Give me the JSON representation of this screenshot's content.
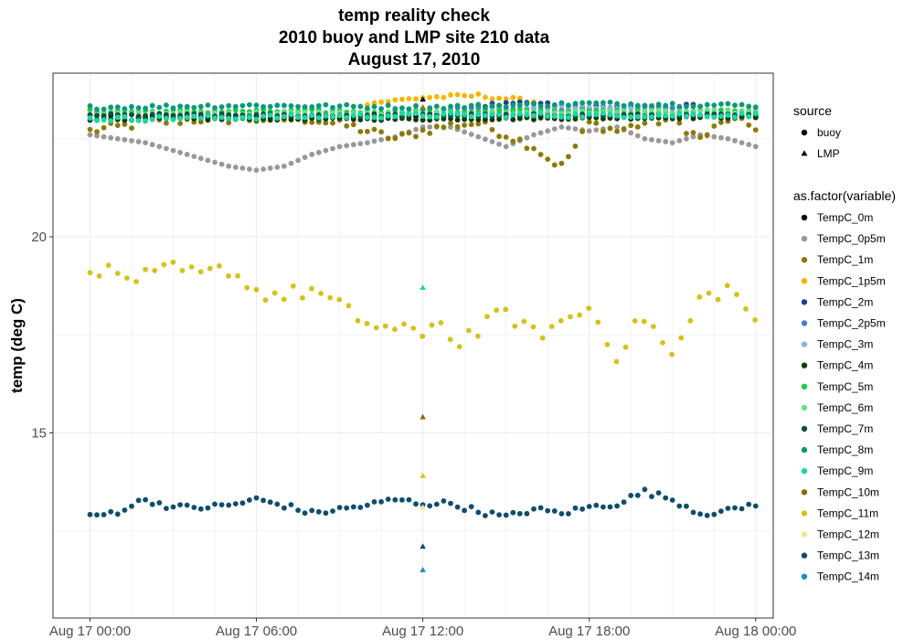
{
  "chart_data": {
    "type": "scatter",
    "title": [
      "temp reality check",
      "2010 buoy and LMP site 210 data",
      "August 17, 2010"
    ],
    "xlabel": "",
    "ylabel": "temp (deg C)",
    "x_range_hours": [
      -1.3,
      24.6
    ],
    "ylim": [
      10.3,
      24.15
    ],
    "x_ticks": [
      {
        "value": 0,
        "label": "Aug 17 00:00"
      },
      {
        "value": 6,
        "label": "Aug 17 06:00"
      },
      {
        "value": 12,
        "label": "Aug 17 12:00"
      },
      {
        "value": 18,
        "label": "Aug 17 18:00"
      },
      {
        "value": 24,
        "label": "Aug 18 00:00"
      }
    ],
    "y_ticks": [
      {
        "value": 15,
        "label": "15"
      },
      {
        "value": 20,
        "label": "20"
      }
    ],
    "grid": true,
    "legend_position": "right",
    "source_legend": {
      "title": "source",
      "entries": [
        {
          "label": "buoy",
          "shape": "circle"
        },
        {
          "label": "LMP",
          "shape": "triangle"
        }
      ]
    },
    "variable_legend": {
      "title": "as.factor(variable)",
      "entries": [
        {
          "label": "TempC_0m",
          "color": "#000000"
        },
        {
          "label": "TempC_0p5m",
          "color": "#999999"
        },
        {
          "label": "TempC_1m",
          "color": "#8c7a00"
        },
        {
          "label": "TempC_1p5m",
          "color": "#f2b600"
        },
        {
          "label": "TempC_2m",
          "color": "#1f3d99"
        },
        {
          "label": "TempC_2p5m",
          "color": "#4d7fbf"
        },
        {
          "label": "TempC_3m",
          "color": "#8fb0e6"
        },
        {
          "label": "TempC_4m",
          "color": "#0b3d0b"
        },
        {
          "label": "TempC_5m",
          "color": "#1ec84a"
        },
        {
          "label": "TempC_6m",
          "color": "#66e08a"
        },
        {
          "label": "TempC_7m",
          "color": "#0b5236"
        },
        {
          "label": "TempC_8m",
          "color": "#0a9a78"
        },
        {
          "label": "TempC_9m",
          "color": "#19d9a3"
        },
        {
          "label": "TempC_10m",
          "color": "#8a6d00"
        },
        {
          "label": "TempC_11m",
          "color": "#d4c21a"
        },
        {
          "label": "TempC_12m",
          "color": "#f2e68c"
        },
        {
          "label": "TempC_13m",
          "color": "#0e4d6e"
        },
        {
          "label": "TempC_14m",
          "color": "#1a8fc4"
        }
      ]
    },
    "series": [
      {
        "name": "TempC_0p5m",
        "source": "buoy",
        "color": "#999999",
        "mode": "smooth",
        "knots": [
          [
            0,
            22.6
          ],
          [
            1,
            22.5
          ],
          [
            2,
            22.4
          ],
          [
            3,
            22.2
          ],
          [
            4,
            22.0
          ],
          [
            5,
            21.8
          ],
          [
            6,
            21.7
          ],
          [
            7,
            21.8
          ],
          [
            8,
            22.1
          ],
          [
            9,
            22.3
          ],
          [
            10,
            22.4
          ],
          [
            11,
            22.55
          ],
          [
            12,
            22.8
          ],
          [
            13,
            22.8
          ],
          [
            14,
            22.55
          ],
          [
            15,
            22.3
          ],
          [
            16,
            22.6
          ],
          [
            17,
            22.8
          ],
          [
            18,
            22.7
          ],
          [
            19,
            22.8
          ],
          [
            20,
            22.5
          ],
          [
            21,
            22.4
          ],
          [
            22,
            22.6
          ],
          [
            23,
            22.5
          ],
          [
            24,
            22.3
          ]
        ]
      },
      {
        "name": "TempC_1m",
        "source": "buoy",
        "color": "#8c7a00",
        "mode": "jitter",
        "knots": [
          [
            0,
            22.7
          ],
          [
            2,
            22.9
          ],
          [
            4,
            23.0
          ],
          [
            6,
            23.0
          ],
          [
            8,
            23.0
          ],
          [
            9.5,
            22.8
          ],
          [
            11,
            22.5
          ],
          [
            12,
            22.7
          ],
          [
            13,
            22.85
          ],
          [
            14,
            22.9
          ],
          [
            15,
            22.6
          ],
          [
            16,
            22.3
          ],
          [
            16.5,
            22.0
          ],
          [
            17,
            21.8
          ],
          [
            17.5,
            22.3
          ],
          [
            18,
            22.9
          ],
          [
            19,
            22.7
          ],
          [
            20,
            22.9
          ],
          [
            21,
            23.0
          ],
          [
            22,
            22.5
          ],
          [
            23,
            23.0
          ],
          [
            24,
            22.8
          ]
        ],
        "amp": 0.12
      },
      {
        "name": "TempC_0m",
        "source": "buoy",
        "color": "#000000",
        "mode": "jitter",
        "knots": [
          [
            0,
            23.1
          ],
          [
            6,
            23.05
          ],
          [
            12,
            23.1
          ],
          [
            18,
            23.1
          ],
          [
            24,
            23.1
          ]
        ],
        "amp": 0.04
      },
      {
        "name": "TempC_1p5m",
        "source": "buoy",
        "color": "#f2b600",
        "mode": "jitter",
        "range": [
          10,
          16
        ],
        "knots": [
          [
            10,
            23.4
          ],
          [
            12,
            23.55
          ],
          [
            14,
            23.6
          ],
          [
            16,
            23.45
          ]
        ],
        "amp": 0.05
      },
      {
        "name": "TempC_2m",
        "source": "buoy",
        "color": "#1f3d99",
        "mode": "jitter",
        "range": [
          14,
          22
        ],
        "knots": [
          [
            14,
            23.35
          ],
          [
            16,
            23.4
          ],
          [
            18,
            23.3
          ],
          [
            20,
            23.3
          ],
          [
            22,
            23.35
          ]
        ],
        "amp": 0.05
      },
      {
        "name": "TempC_2p5m",
        "source": "buoy",
        "color": "#4d7fbf",
        "mode": "jitter",
        "range": [
          13,
          21
        ],
        "knots": [
          [
            13,
            23.25
          ],
          [
            16,
            23.3
          ],
          [
            18,
            23.25
          ],
          [
            21,
            23.3
          ]
        ],
        "amp": 0.05
      },
      {
        "name": "TempC_3m",
        "source": "buoy",
        "color": "#8fb0e6",
        "mode": "jitter",
        "range": [
          14,
          20
        ],
        "knots": [
          [
            14,
            23.2
          ],
          [
            17,
            23.3
          ],
          [
            20,
            23.25
          ]
        ],
        "amp": 0.05
      },
      {
        "name": "TempC_4m",
        "source": "buoy",
        "color": "#0b3d0b",
        "mode": "jitter",
        "knots": [
          [
            0,
            23.0
          ],
          [
            12,
            23.0
          ],
          [
            24,
            23.05
          ]
        ],
        "amp": 0.03
      },
      {
        "name": "TempC_5m",
        "source": "buoy",
        "color": "#1ec84a",
        "mode": "jitter",
        "knots": [
          [
            0,
            23.2
          ],
          [
            12,
            23.2
          ],
          [
            24,
            23.2
          ]
        ],
        "amp": 0.05
      },
      {
        "name": "TempC_6m",
        "source": "buoy",
        "color": "#66e08a",
        "mode": "jitter",
        "knots": [
          [
            0,
            23.15
          ],
          [
            12,
            23.15
          ],
          [
            24,
            23.2
          ]
        ],
        "amp": 0.05
      },
      {
        "name": "TempC_7m",
        "source": "buoy",
        "color": "#0b5236",
        "mode": "jitter",
        "knots": [
          [
            0,
            23.1
          ],
          [
            12,
            23.1
          ],
          [
            24,
            23.1
          ]
        ],
        "amp": 0.04
      },
      {
        "name": "TempC_8m",
        "source": "buoy",
        "color": "#0a9a78",
        "mode": "jitter",
        "knots": [
          [
            0,
            23.3
          ],
          [
            6,
            23.35
          ],
          [
            12,
            23.3
          ],
          [
            18,
            23.4
          ],
          [
            24,
            23.35
          ]
        ],
        "amp": 0.05
      },
      {
        "name": "TempC_9m",
        "source": "buoy",
        "color": "#19d9a3",
        "mode": "jitter",
        "knots": [
          [
            0,
            23.0
          ],
          [
            12,
            23.1
          ],
          [
            24,
            23.1
          ]
        ],
        "amp": 0.06
      },
      {
        "name": "TempC_11m",
        "source": "buoy",
        "color": "#d4c21a",
        "mode": "scatter",
        "knots": [
          [
            0,
            19.3
          ],
          [
            1,
            19.0
          ],
          [
            2,
            18.95
          ],
          [
            3,
            19.15
          ],
          [
            4,
            19.0
          ],
          [
            5,
            19.2
          ],
          [
            6,
            18.6
          ],
          [
            7,
            18.5
          ],
          [
            8,
            18.65
          ],
          [
            9,
            18.2
          ],
          [
            10,
            17.8
          ],
          [
            11,
            17.6
          ],
          [
            12,
            17.5
          ],
          [
            12.5,
            18.1
          ],
          [
            13,
            17.3
          ],
          [
            14,
            17.6
          ],
          [
            15,
            18.1
          ],
          [
            16,
            17.5
          ],
          [
            17,
            17.8
          ],
          [
            18,
            18.2
          ],
          [
            19,
            17.0
          ],
          [
            20,
            18.0
          ],
          [
            21,
            16.9
          ],
          [
            22,
            18.4
          ],
          [
            23,
            18.7
          ],
          [
            24,
            17.9
          ]
        ],
        "amp": 0.22
      },
      {
        "name": "TempC_13m",
        "source": "buoy",
        "color": "#0e4d6e",
        "mode": "jitter",
        "knots": [
          [
            0,
            12.85
          ],
          [
            1,
            13.0
          ],
          [
            2,
            13.3
          ],
          [
            3,
            13.1
          ],
          [
            4,
            13.1
          ],
          [
            5,
            13.15
          ],
          [
            6,
            13.3
          ],
          [
            7,
            13.15
          ],
          [
            8,
            12.95
          ],
          [
            9,
            13.05
          ],
          [
            10,
            13.15
          ],
          [
            11,
            13.3
          ],
          [
            12,
            13.2
          ],
          [
            13,
            13.2
          ],
          [
            14,
            13.0
          ],
          [
            15,
            12.85
          ],
          [
            16,
            13.05
          ],
          [
            17,
            12.95
          ],
          [
            18,
            13.1
          ],
          [
            19,
            13.2
          ],
          [
            20,
            13.5
          ],
          [
            21,
            13.3
          ],
          [
            22,
            12.95
          ],
          [
            23,
            13.0
          ],
          [
            24,
            13.2
          ]
        ],
        "amp": 0.08
      }
    ],
    "lmp_points": [
      {
        "x": 12,
        "y": 23.5,
        "color": "#000000"
      },
      {
        "x": 12,
        "y": 23.3,
        "color": "#8c7a00"
      },
      {
        "x": 12,
        "y": 18.7,
        "color": "#19d9a3"
      },
      {
        "x": 12,
        "y": 15.4,
        "color": "#8a6d00"
      },
      {
        "x": 12,
        "y": 13.9,
        "color": "#d4c21a"
      },
      {
        "x": 12,
        "y": 13.1,
        "color": "#f2e68c"
      },
      {
        "x": 12,
        "y": 12.1,
        "color": "#0e4d6e"
      },
      {
        "x": 12,
        "y": 11.5,
        "color": "#1a8fc4"
      }
    ]
  }
}
